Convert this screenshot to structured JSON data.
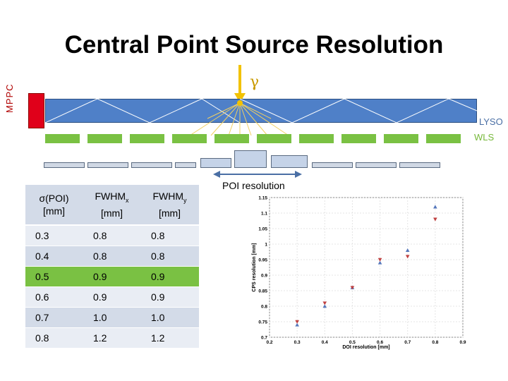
{
  "title": "Central Point Source Resolution",
  "diagram": {
    "gamma_label": "γ",
    "mppc_label": "MPPC",
    "lyso_label": "LYSO",
    "wls_label": "WLS",
    "poi_label": "POI resolution",
    "colors": {
      "lyso": "#4f80c8",
      "wls": "#7ac143",
      "mppc": "#e0001a",
      "gamma": "#f2c200",
      "rays": "#f2d060"
    }
  },
  "table": {
    "headers": [
      {
        "main": "σ(POI)",
        "sub": "",
        "unit": "[mm]"
      },
      {
        "main": "FWHM",
        "sub": "x",
        "unit": "[mm]"
      },
      {
        "main": "FWHM",
        "sub": "y",
        "unit": "[mm]"
      }
    ],
    "rows": [
      [
        "0.3",
        "0.8",
        "0.8"
      ],
      [
        "0.4",
        "0.8",
        "0.8"
      ],
      [
        "0.5",
        "0.9",
        "0.9"
      ],
      [
        "0.6",
        "0.9",
        "0.9"
      ],
      [
        "0.7",
        "1.0",
        "1.0"
      ],
      [
        "0.8",
        "1.2",
        "1.2"
      ]
    ],
    "highlight_row": 2,
    "highlight_color": "#7ac143"
  },
  "chart_data": {
    "type": "scatter",
    "title": "",
    "xlabel": "DOI resolution [mm]",
    "ylabel": "CPS resolution [mm]",
    "xlim": [
      0.2,
      0.9
    ],
    "ylim": [
      0.7,
      1.15
    ],
    "xticks": [
      "0.2",
      "0.3",
      "0.4",
      "0.5",
      "0.6",
      "0.7",
      "0.8",
      "0.9"
    ],
    "yticks": [
      "0.7",
      "0.75",
      "0.8",
      "0.85",
      "0.9",
      "0.95",
      "1",
      "1.05",
      "1.1",
      "1.15"
    ],
    "series": [
      {
        "marker": "triangle-up",
        "color": "#5577bb",
        "x": [
          0.3,
          0.4,
          0.5,
          0.6,
          0.7,
          0.8
        ],
        "y": [
          0.74,
          0.8,
          0.86,
          0.94,
          0.98,
          1.12
        ]
      },
      {
        "marker": "triangle-down",
        "color": "#c04040",
        "x": [
          0.3,
          0.4,
          0.5,
          0.6,
          0.7,
          0.8
        ],
        "y": [
          0.75,
          0.81,
          0.86,
          0.95,
          0.96,
          1.08
        ]
      }
    ]
  }
}
